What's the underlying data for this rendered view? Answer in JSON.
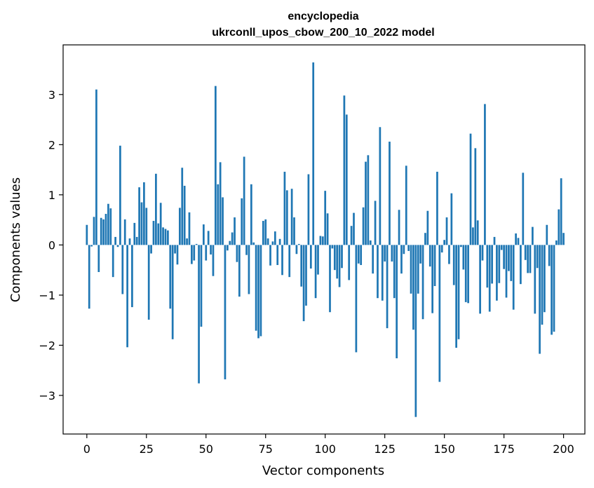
{
  "chart_data": {
    "type": "bar",
    "title_line1": "encyclopedia",
    "title_line2": "ukrconll_upos_cbow_200_10_2022 model",
    "xlabel": "Vector components",
    "ylabel": "Components values",
    "xlim": [
      -9.95,
      208.95
    ],
    "ylim": [
      -3.77,
      3.99
    ],
    "xticks": [
      0,
      25,
      50,
      75,
      100,
      125,
      150,
      175,
      200
    ],
    "yticks": [
      -3,
      -2,
      -1,
      0,
      1,
      2,
      3
    ],
    "grid": false,
    "bar_color": "#1f77b4",
    "values": [
      0.4,
      -1.27,
      -0.03,
      0.56,
      3.1,
      -0.54,
      0.54,
      0.51,
      0.62,
      0.82,
      0.73,
      -0.64,
      0.16,
      -0.04,
      1.98,
      -0.98,
      0.51,
      -2.04,
      0.13,
      -1.24,
      0.44,
      0.16,
      1.15,
      0.85,
      1.25,
      0.74,
      -1.49,
      -0.17,
      0.48,
      1.42,
      0.43,
      0.84,
      0.35,
      0.32,
      0.29,
      -1.27,
      -1.88,
      -0.17,
      -0.39,
      0.74,
      1.54,
      1.18,
      0.13,
      0.65,
      -0.38,
      -0.31,
      0.02,
      -2.76,
      -1.63,
      0.41,
      -0.31,
      0.28,
      -0.19,
      -0.62,
      3.17,
      1.21,
      1.65,
      0.95,
      -2.68,
      -0.11,
      0.08,
      0.25,
      0.55,
      -0.34,
      -1.03,
      0.93,
      1.76,
      -0.2,
      -0.98,
      1.21,
      0.05,
      -1.71,
      -1.86,
      -1.82,
      0.48,
      0.51,
      0.13,
      -0.41,
      0.07,
      0.27,
      -0.4,
      0.12,
      -0.6,
      1.46,
      1.09,
      -0.64,
      1.12,
      0.55,
      -0.18,
      0.02,
      -0.83,
      -1.52,
      -1.21,
      1.41,
      -0.47,
      3.64,
      -1.06,
      -0.59,
      0.18,
      0.17,
      1.08,
      0.63,
      -1.34,
      -0.07,
      -0.5,
      -0.67,
      -0.84,
      -0.46,
      2.98,
      2.6,
      -0.7,
      0.38,
      0.64,
      -2.14,
      -0.37,
      -0.4,
      0.75,
      1.66,
      1.79,
      0.09,
      -0.57,
      0.88,
      -1.06,
      2.35,
      -1.11,
      -0.33,
      -1.66,
      2.06,
      -0.33,
      -1.06,
      -2.26,
      0.7,
      -0.57,
      -0.18,
      1.58,
      -0.12,
      -0.97,
      -1.69,
      -3.43,
      -0.97,
      -0.37,
      -1.48,
      0.24,
      0.68,
      -0.43,
      -1.36,
      -0.82,
      1.46,
      -2.73,
      -0.15,
      0.1,
      0.55,
      -0.38,
      1.03,
      -0.8,
      -2.05,
      -1.88,
      -0.04,
      -0.49,
      -1.14,
      -1.16,
      2.22,
      0.35,
      1.93,
      0.49,
      -1.37,
      -0.31,
      2.81,
      -0.85,
      -1.33,
      -0.77,
      0.16,
      -1.11,
      -0.76,
      -0.1,
      -0.48,
      -1.05,
      -0.52,
      -0.72,
      -1.29,
      0.23,
      0.14,
      -0.78,
      1.44,
      -0.3,
      -0.56,
      -0.56,
      0.36,
      -1.37,
      -0.46,
      -2.17,
      -1.59,
      -1.34,
      0.4,
      -0.42,
      -1.79,
      -1.73,
      0.09,
      0.71,
      1.33,
      0.24
    ]
  }
}
